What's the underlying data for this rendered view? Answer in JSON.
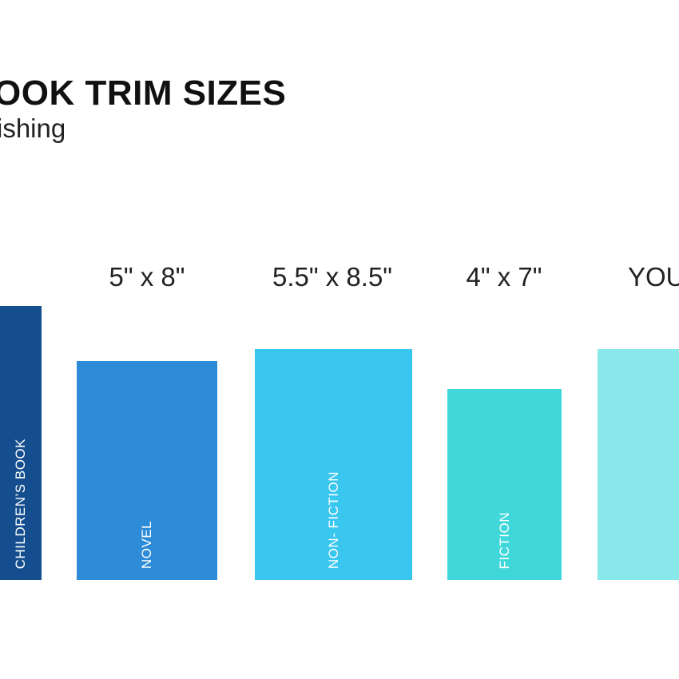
{
  "header": {
    "title": "OOK TRIM SIZES",
    "subtitle": "ishing"
  },
  "books": [
    {
      "size": "",
      "genre": "CHILDREN’S BOOK",
      "color": "#144e8e"
    },
    {
      "size": "5\" x 8\"",
      "genre": "NOVEL",
      "color": "#2d8bd7"
    },
    {
      "size": "5.5\" x 8.5\"",
      "genre": "NON- FICTION",
      "color": "#39c6ef"
    },
    {
      "size": "4\" x 7\"",
      "genre": "FICTION",
      "color": "#3fd7d9"
    },
    {
      "size": "YOU",
      "genre": "",
      "color": "#89e8ea"
    }
  ]
}
